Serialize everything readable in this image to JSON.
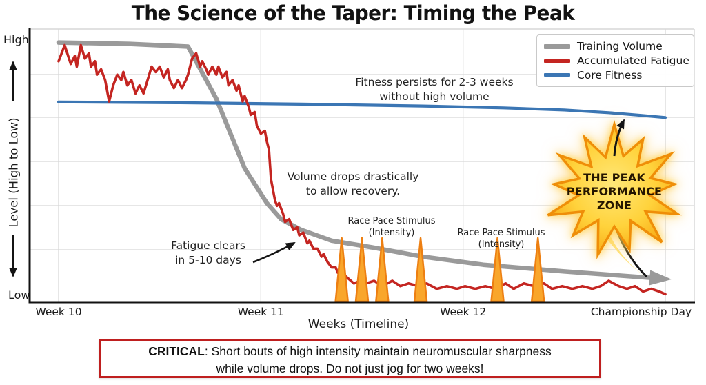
{
  "title": "The Science of the Taper: Timing the Peak",
  "y_axis": {
    "top": "High",
    "bottom": "Low",
    "label": "Level (High to Low)"
  },
  "annotations": {
    "fitness": {
      "line1": "Fitness persists for 2-3 weeks",
      "line2": "without high volume"
    },
    "volume": {
      "line1": "Volume drops drastically",
      "line2": "to allow recovery."
    },
    "fatigue": {
      "line1": "Fatigue clears",
      "line2": "in 5-10 days"
    },
    "race_pace_1": {
      "line1": "Race Pace Stimulus",
      "line2": "(Intensity)"
    },
    "race_pace_2": {
      "line1": "Race Pace Stimulus",
      "line2": "(Intensity)"
    }
  },
  "starburst": {
    "line1": "THE PEAK",
    "line2": "PERFORMANCE",
    "line3": "ZONE"
  },
  "critical": {
    "label": "CRITICAL",
    "line1_rest": ": Short bouts of high intensity maintain neuromuscular sharpness",
    "line2": "while volume drops. Do not just jog for two weeks!"
  },
  "chart_data": {
    "type": "line",
    "title": "The Science of the Taper: Timing the Peak",
    "xlabel": "Weeks (Timeline)",
    "ylabel": "Level (High to Low)",
    "ylim": [
      0,
      1
    ],
    "x_range": [
      10,
      13.05
    ],
    "grid": true,
    "legend_position": "top-right",
    "x_ticks": [
      {
        "week": 10,
        "label": "Week 10"
      },
      {
        "week": 11,
        "label": "Week 11"
      },
      {
        "week": 12,
        "label": "Week 12"
      },
      {
        "week": 13,
        "label": "Championship Day"
      }
    ],
    "series": [
      {
        "name": "Training Volume",
        "color": "#9a9a9a",
        "width": 6.5,
        "arrow_end": true,
        "points": [
          [
            10.0,
            0.97
          ],
          [
            10.35,
            0.965
          ],
          [
            10.64,
            0.955
          ],
          [
            10.78,
            0.76
          ],
          [
            10.92,
            0.5
          ],
          [
            11.03,
            0.37
          ],
          [
            11.1,
            0.31
          ],
          [
            11.2,
            0.27
          ],
          [
            11.35,
            0.23
          ],
          [
            11.55,
            0.205
          ],
          [
            11.8,
            0.17
          ],
          [
            12.1,
            0.14
          ],
          [
            12.5,
            0.115
          ],
          [
            12.95,
            0.09
          ]
        ]
      },
      {
        "name": "Accumulated Fatigue",
        "color": "#c42521",
        "width": 3.6,
        "points": [
          [
            10.0,
            0.9
          ],
          [
            10.03,
            0.96
          ],
          [
            10.06,
            0.89
          ],
          [
            10.08,
            0.92
          ],
          [
            10.09,
            0.88
          ],
          [
            10.11,
            0.96
          ],
          [
            10.13,
            0.91
          ],
          [
            10.15,
            0.93
          ],
          [
            10.16,
            0.88
          ],
          [
            10.18,
            0.9
          ],
          [
            10.19,
            0.85
          ],
          [
            10.21,
            0.87
          ],
          [
            10.23,
            0.83
          ],
          [
            10.25,
            0.75
          ],
          [
            10.27,
            0.81
          ],
          [
            10.29,
            0.85
          ],
          [
            10.31,
            0.83
          ],
          [
            10.32,
            0.86
          ],
          [
            10.34,
            0.81
          ],
          [
            10.36,
            0.83
          ],
          [
            10.38,
            0.78
          ],
          [
            10.4,
            0.81
          ],
          [
            10.42,
            0.78
          ],
          [
            10.44,
            0.83
          ],
          [
            10.46,
            0.88
          ],
          [
            10.48,
            0.86
          ],
          [
            10.5,
            0.88
          ],
          [
            10.52,
            0.84
          ],
          [
            10.54,
            0.87
          ],
          [
            10.55,
            0.83
          ],
          [
            10.57,
            0.8
          ],
          [
            10.59,
            0.83
          ],
          [
            10.61,
            0.8
          ],
          [
            10.63,
            0.83
          ],
          [
            10.64,
            0.85
          ],
          [
            10.66,
            0.91
          ],
          [
            10.68,
            0.93
          ],
          [
            10.7,
            0.88
          ],
          [
            10.71,
            0.9
          ],
          [
            10.73,
            0.87
          ],
          [
            10.74,
            0.85
          ],
          [
            10.76,
            0.88
          ],
          [
            10.78,
            0.85
          ],
          [
            10.79,
            0.88
          ],
          [
            10.81,
            0.84
          ],
          [
            10.83,
            0.86
          ],
          [
            10.84,
            0.81
          ],
          [
            10.86,
            0.83
          ],
          [
            10.88,
            0.79
          ],
          [
            10.89,
            0.81
          ],
          [
            10.91,
            0.75
          ],
          [
            10.92,
            0.77
          ],
          [
            10.94,
            0.73
          ],
          [
            10.95,
            0.7
          ],
          [
            10.97,
            0.71
          ],
          [
            10.98,
            0.66
          ],
          [
            11.0,
            0.63
          ],
          [
            11.02,
            0.64
          ],
          [
            11.03,
            0.6
          ],
          [
            11.04,
            0.57
          ],
          [
            11.05,
            0.46
          ],
          [
            11.07,
            0.38
          ],
          [
            11.08,
            0.36
          ],
          [
            11.09,
            0.37
          ],
          [
            11.11,
            0.33
          ],
          [
            11.12,
            0.3
          ],
          [
            11.14,
            0.31
          ],
          [
            11.16,
            0.27
          ],
          [
            11.18,
            0.28
          ],
          [
            11.19,
            0.25
          ],
          [
            11.21,
            0.26
          ],
          [
            11.23,
            0.22
          ],
          [
            11.24,
            0.23
          ],
          [
            11.26,
            0.2
          ],
          [
            11.28,
            0.2
          ],
          [
            11.3,
            0.17
          ],
          [
            11.31,
            0.18
          ],
          [
            11.33,
            0.15
          ],
          [
            11.35,
            0.13
          ],
          [
            11.37,
            0.13
          ],
          [
            11.38,
            0.11
          ],
          [
            11.4,
            0.11
          ],
          [
            11.43,
            0.09
          ],
          [
            11.46,
            0.07
          ],
          [
            11.49,
            0.08
          ],
          [
            11.52,
            0.07
          ],
          [
            11.56,
            0.08
          ],
          [
            11.6,
            0.06
          ],
          [
            11.65,
            0.08
          ],
          [
            11.69,
            0.06
          ],
          [
            11.73,
            0.07
          ],
          [
            11.78,
            0.06
          ],
          [
            11.82,
            0.07
          ],
          [
            11.87,
            0.05
          ],
          [
            11.92,
            0.06
          ],
          [
            11.97,
            0.05
          ],
          [
            12.01,
            0.06
          ],
          [
            12.06,
            0.05
          ],
          [
            12.11,
            0.06
          ],
          [
            12.16,
            0.05
          ],
          [
            12.21,
            0.07
          ],
          [
            12.25,
            0.05
          ],
          [
            12.3,
            0.07
          ],
          [
            12.35,
            0.06
          ],
          [
            12.4,
            0.07
          ],
          [
            12.44,
            0.05
          ],
          [
            12.49,
            0.06
          ],
          [
            12.54,
            0.05
          ],
          [
            12.59,
            0.06
          ],
          [
            12.64,
            0.05
          ],
          [
            12.68,
            0.06
          ],
          [
            12.72,
            0.08
          ],
          [
            12.77,
            0.06
          ],
          [
            12.81,
            0.05
          ],
          [
            12.85,
            0.06
          ],
          [
            12.89,
            0.04
          ],
          [
            12.93,
            0.05
          ],
          [
            12.97,
            0.04
          ],
          [
            13.0,
            0.03
          ]
        ]
      },
      {
        "name": "Core Fitness",
        "color": "#3b76b4",
        "width": 4.2,
        "points": [
          [
            10.0,
            0.748
          ],
          [
            10.6,
            0.745
          ],
          [
            11.2,
            0.74
          ],
          [
            11.8,
            0.733
          ],
          [
            12.2,
            0.726
          ],
          [
            12.5,
            0.718
          ],
          [
            12.72,
            0.708
          ],
          [
            12.88,
            0.698
          ],
          [
            13.0,
            0.69
          ]
        ]
      }
    ],
    "intensity_spikes": {
      "name": "Race Pace Stimulus (Intensity)",
      "stroke": "#ed7f12",
      "fill": "#f9a62b",
      "height": 0.24,
      "weeks": [
        11.4,
        11.5,
        11.6,
        11.79,
        12.17,
        12.37
      ]
    }
  }
}
